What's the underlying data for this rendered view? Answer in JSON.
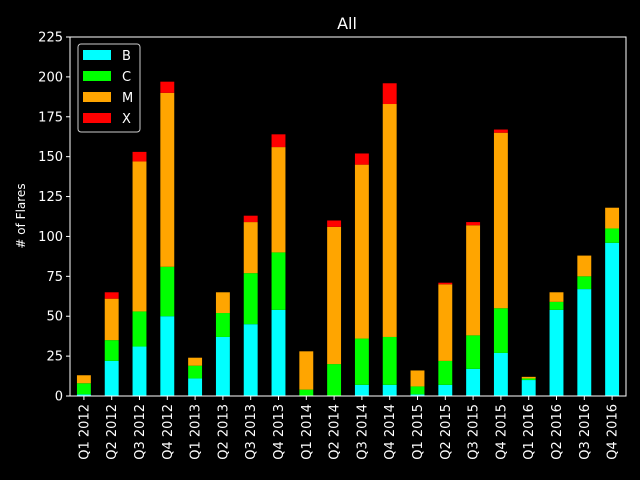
{
  "chart_data": {
    "type": "bar",
    "stacked": true,
    "title": "All",
    "xlabel": "",
    "ylabel": "# of Flares",
    "ylim": [
      0,
      225
    ],
    "yticks": [
      0,
      25,
      50,
      75,
      100,
      125,
      150,
      175,
      200,
      225
    ],
    "grid": false,
    "legend_position": "top-left",
    "categories": [
      "Q1 2012",
      "Q2 2012",
      "Q3 2012",
      "Q4 2012",
      "Q1 2013",
      "Q2 2013",
      "Q3 2013",
      "Q4 2013",
      "Q1 2014",
      "Q2 2014",
      "Q3 2014",
      "Q4 2014",
      "Q1 2015",
      "Q2 2015",
      "Q3 2015",
      "Q4 2015",
      "Q1 2016",
      "Q2 2016",
      "Q3 2016",
      "Q4 2016"
    ],
    "series": [
      {
        "name": "B",
        "color": "#00ffff",
        "values": [
          1,
          22,
          31,
          50,
          11,
          37,
          45,
          54,
          0,
          0,
          7,
          7,
          1,
          7,
          17,
          27,
          10,
          54,
          67,
          96
        ]
      },
      {
        "name": "C",
        "color": "#00ff00",
        "values": [
          7,
          13,
          22,
          31,
          8,
          15,
          32,
          36,
          4,
          20,
          29,
          30,
          5,
          15,
          21,
          28,
          1,
          5,
          8,
          9
        ]
      },
      {
        "name": "M",
        "color": "#ffa500",
        "values": [
          5,
          26,
          94,
          109,
          5,
          13,
          32,
          66,
          24,
          86,
          109,
          146,
          10,
          48,
          69,
          110,
          1,
          6,
          13,
          13
        ]
      },
      {
        "name": "X",
        "color": "#ff0000",
        "values": [
          0,
          4,
          6,
          7,
          0,
          0,
          4,
          8,
          0,
          4,
          7,
          13,
          0,
          1,
          2,
          2,
          0,
          0,
          0,
          0
        ]
      }
    ]
  }
}
